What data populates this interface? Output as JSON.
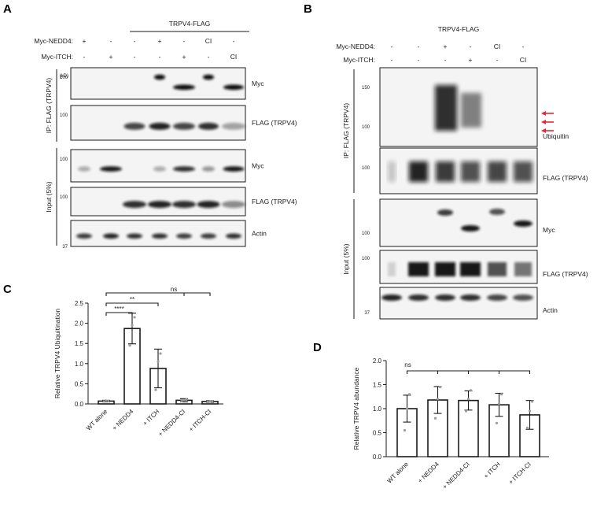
{
  "panels": {
    "A": {
      "letter": "A",
      "header": "TRPV4-FLAG",
      "rows": [
        {
          "label": "Myc-NEDD4:",
          "cells": [
            "+",
            "-",
            "-",
            "+",
            "-",
            "CI",
            "-"
          ]
        },
        {
          "label": "Myc-ITCH:",
          "cells": [
            "-",
            "+",
            "-",
            "-",
            "+",
            "-",
            "CI"
          ]
        }
      ],
      "ip_label": "IP: FLAG (TRPV4)",
      "input_label": "Input (5%)",
      "kd_label": "(kD)",
      "blots": [
        {
          "label": "Myc",
          "marker": "100"
        },
        {
          "label": "FLAG (TRPV4)",
          "marker": "100"
        },
        {
          "label": "Myc",
          "marker": "100"
        },
        {
          "label": "FLAG (TRPV4)",
          "marker": "100"
        },
        {
          "label": "Actin",
          "marker": "37"
        }
      ]
    },
    "B": {
      "letter": "B",
      "header": "TRPV4-FLAG",
      "rows": [
        {
          "label": "Myc-NEDD4:",
          "cells": [
            "-",
            "-",
            "+",
            "-",
            "CI",
            "-"
          ]
        },
        {
          "label": "Myc-ITCH:",
          "cells": [
            "-",
            "-",
            "-",
            "+",
            "-",
            "CI"
          ]
        }
      ],
      "ip_label": "IP: FLAG (TRPV4)",
      "input_label": "Input (5%)",
      "blots": [
        {
          "label": "Ubiquitin",
          "markers": [
            "150",
            "100"
          ]
        },
        {
          "label": "FLAG (TRPV4)",
          "markers": [
            "100"
          ]
        },
        {
          "label": "Myc",
          "markers": [
            "100"
          ]
        },
        {
          "label": "FLAG (TRPV4)",
          "markers": [
            "100"
          ]
        },
        {
          "label": "Actin",
          "markers": [
            "37"
          ]
        }
      ],
      "arrow_color": "#e8283a"
    },
    "C": {
      "letter": "C",
      "significance": [
        "****",
        "**",
        "ns"
      ]
    },
    "D": {
      "letter": "D",
      "significance": [
        "ns"
      ]
    }
  },
  "chart_data": [
    {
      "type": "bar",
      "panel": "C",
      "categories": [
        "WT alone",
        "+ NEDD4",
        "+ ITCH",
        "+ NEDD4-CI",
        "+ ITCH-CI"
      ],
      "values": [
        0.07,
        1.87,
        0.88,
        0.09,
        0.06
      ],
      "errors": [
        0.02,
        0.38,
        0.48,
        0.04,
        0.02
      ],
      "points": [
        [
          0.06,
          0.08,
          0.07
        ],
        [
          1.45,
          1.95,
          2.15
        ],
        [
          0.35,
          1.05,
          1.25
        ],
        [
          0.07,
          0.09,
          0.11
        ],
        [
          0.05,
          0.06,
          0.07
        ]
      ],
      "xlabel": "",
      "ylabel": "Relative TRPV4 Ubiquitination",
      "ylim": [
        0,
        2.5
      ],
      "yticks": [
        "0.0",
        "0.5",
        "1.0",
        "1.5",
        "2.0",
        "2.5"
      ]
    },
    {
      "type": "bar",
      "panel": "D",
      "categories": [
        "WT alone",
        "+ NEDD4",
        "+ NEDD4-CI",
        "+ ITCH",
        "+ ITCH-CI"
      ],
      "values": [
        1.0,
        1.18,
        1.17,
        1.08,
        0.87
      ],
      "errors": [
        0.28,
        0.28,
        0.2,
        0.24,
        0.3
      ],
      "points": [
        [
          0.55,
          1.0,
          1.3
        ],
        [
          0.8,
          1.2,
          1.45
        ],
        [
          0.95,
          1.2,
          1.38
        ],
        [
          0.7,
          1.1,
          1.3
        ],
        [
          0.6,
          0.95,
          1.15
        ]
      ],
      "xlabel": "",
      "ylabel": "Relative TRPV4 abundance",
      "ylim": [
        0,
        2.0
      ],
      "yticks": [
        "0.0",
        "0.5",
        "1.0",
        "1.5",
        "2.0"
      ]
    }
  ]
}
